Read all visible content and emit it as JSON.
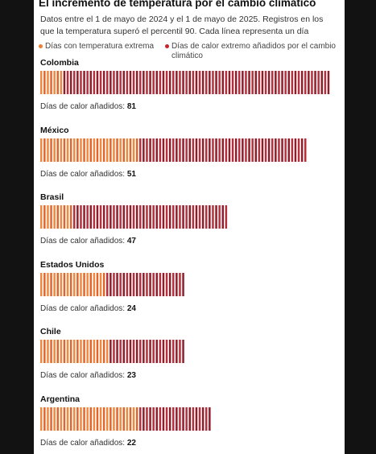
{
  "title": "El incremento de temperatura por el cambio climático",
  "subtitle": "Datos entre el 1 de mayo de 2024 y el 1 de mayo de 2025. Registros en los que la temperatura superó el percentil 90. Cada línea representa un día",
  "legend": {
    "extreme_label": "Días con temperatura extrema",
    "added_label": "Días de calor extremo añadidos por el cambio climático"
  },
  "colors": {
    "extreme": "#f0883e",
    "extreme_alt": "#e2662c",
    "added": "#b5303c",
    "added_alt": "#8f1e2b",
    "legend_extreme": "#ef7d2f",
    "legend_added": "#c8232c"
  },
  "added_prefix": "Días de calor añadidos:",
  "chart_data": {
    "type": "bar",
    "title": "El incremento de temperatura por el cambio climático",
    "categories": [
      "Colombia",
      "México",
      "Brasil",
      "Estados Unidos",
      "Chile",
      "Argentina"
    ],
    "series": [
      {
        "name": "Días con temperatura extrema",
        "values": [
          7,
          30,
          10,
          20,
          21,
          30
        ]
      },
      {
        "name": "Días de calor extremo añadidos por el cambio climático",
        "values": [
          81,
          51,
          47,
          24,
          23,
          22
        ]
      }
    ],
    "unit": "días"
  }
}
